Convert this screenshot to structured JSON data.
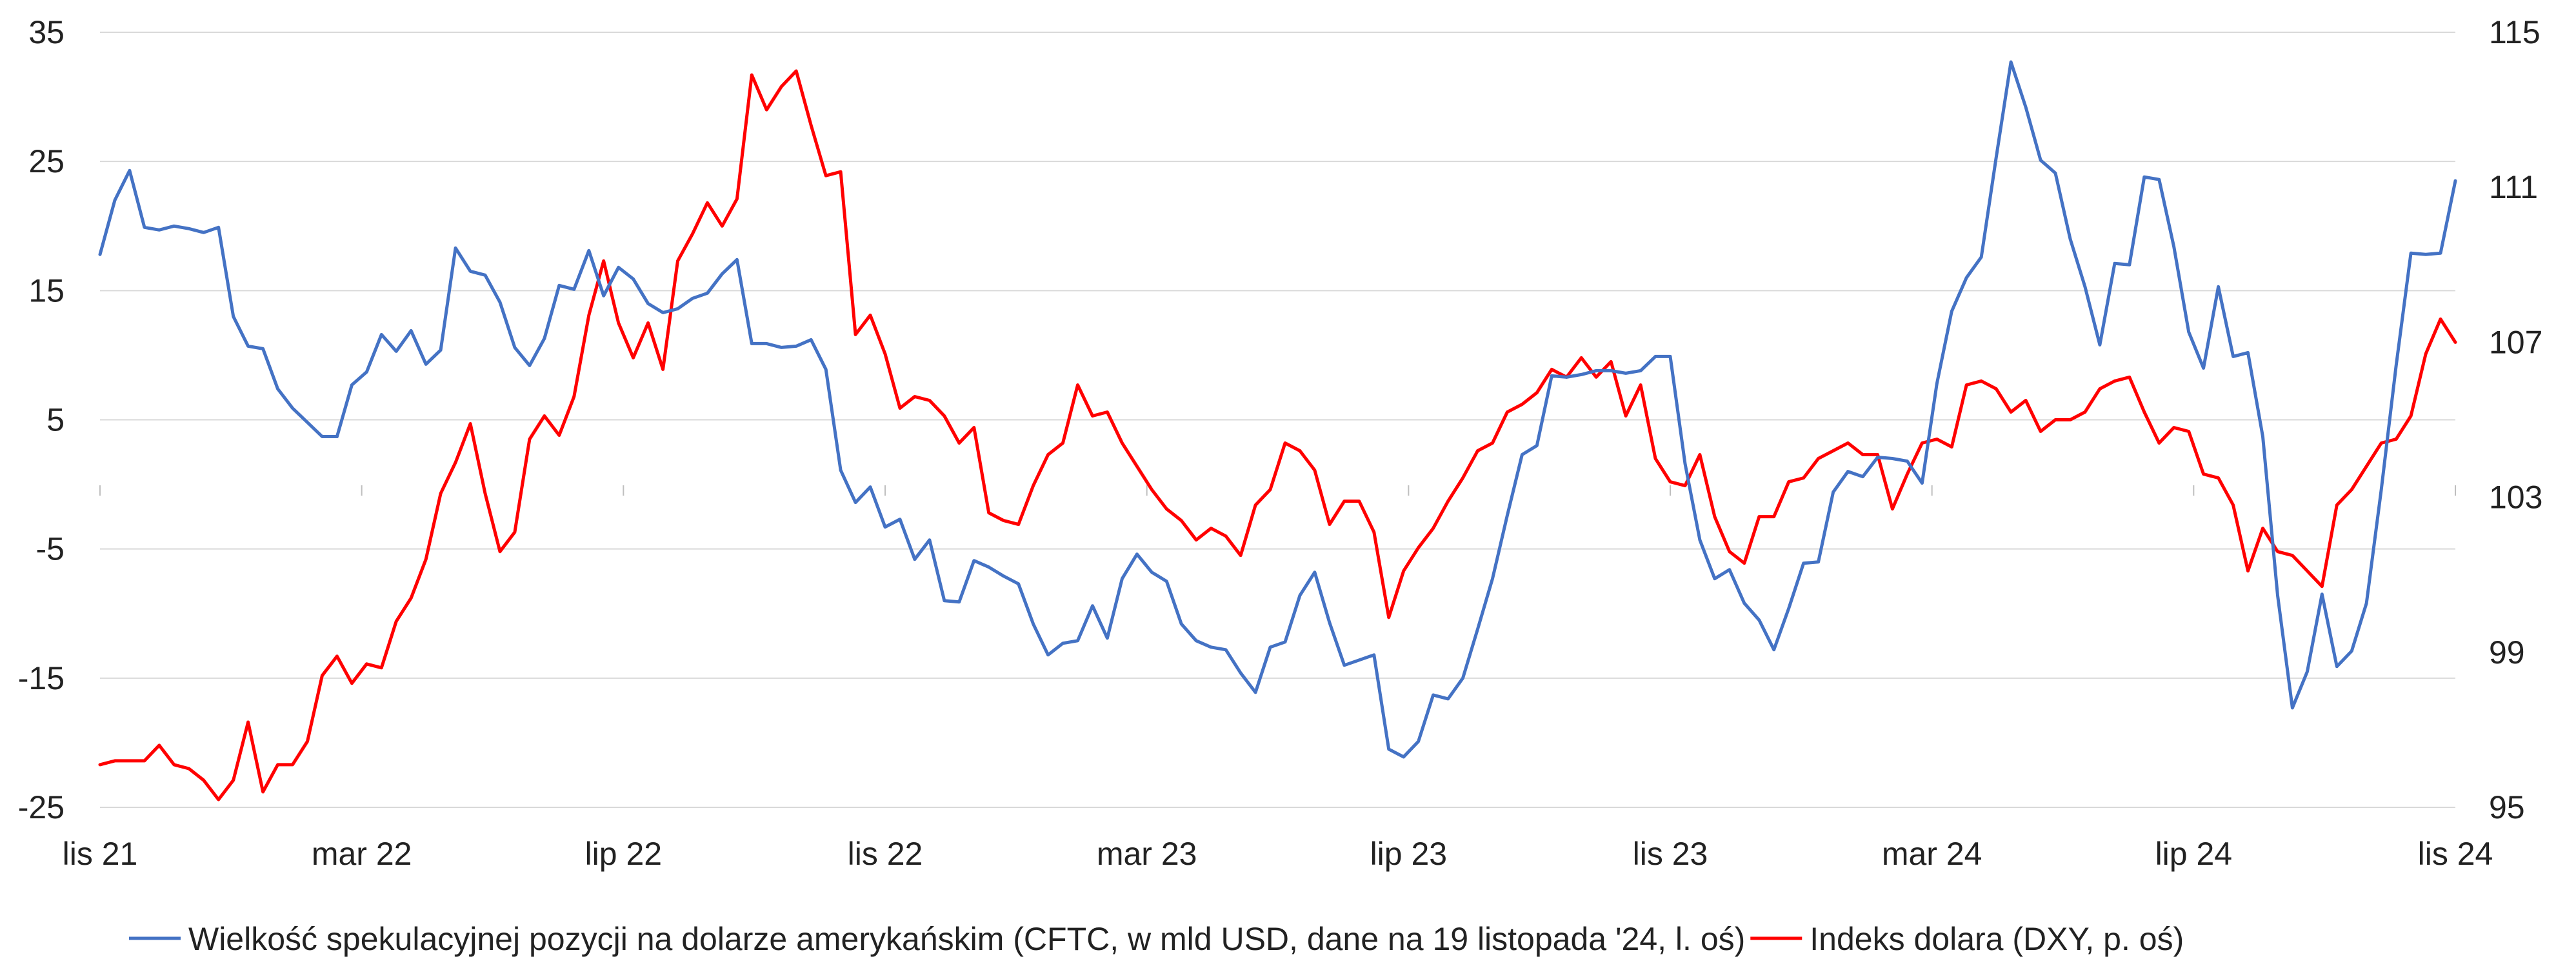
{
  "chart_data": {
    "type": "line",
    "title": "",
    "xlabel": "",
    "ylabel_left": "",
    "ylabel_right": "",
    "x_tick_labels": [
      "lis 21",
      "mar 22",
      "lip 22",
      "lis 22",
      "mar 23",
      "lip 23",
      "lis 23",
      "mar 24",
      "lip 24",
      "lis 24"
    ],
    "y_left": {
      "min": -25,
      "max": 35,
      "ticks": [
        -25,
        -15,
        -5,
        5,
        15,
        25,
        35
      ]
    },
    "y_right": {
      "min": 95,
      "max": 115,
      "ticks": [
        95,
        99,
        103,
        107,
        111,
        115
      ]
    },
    "grid": "horizontal",
    "legend_position": "bottom",
    "colors": {
      "cftc": "#4472c4",
      "dxy": "#ff0000",
      "grid": "#d9d9d9"
    },
    "series": [
      {
        "name": "Wielkość spekulacyjnej pozycji na dolarze amerykańskim (CFTC, w mld USD, dane na 19 listopada '24, l. oś)",
        "axis": "left",
        "values": [
          17.8,
          22,
          24.3,
          19.9,
          19.7,
          20,
          19.8,
          19.5,
          19.9,
          13,
          10.7,
          10.5,
          7.4,
          5.9,
          4.8,
          3.7,
          3.7,
          7.7,
          8.7,
          11.6,
          10.3,
          11.9,
          9.3,
          10.4,
          18.3,
          16.5,
          16.2,
          14.1,
          10.6,
          9.2,
          11.3,
          15.4,
          15.1,
          18.1,
          14.6,
          16.8,
          15.9,
          14,
          13.3,
          13.6,
          14.4,
          14.8,
          16.3,
          17.4,
          10.9,
          10.9,
          10.6,
          10.7,
          11.2,
          8.9,
          1.1,
          -1.4,
          -0.2,
          -3.3,
          -2.7,
          -5.8,
          -4.3,
          -9,
          -9.1,
          -5.9,
          -6.4,
          -7.1,
          -7.7,
          -10.8,
          -13.2,
          -12.3,
          -12.1,
          -9.4,
          -11.9,
          -7.3,
          -5.4,
          -6.8,
          -7.5,
          -10.8,
          -12.1,
          -12.6,
          -12.8,
          -14.6,
          -16.1,
          -12.6,
          -12.2,
          -8.6,
          -6.8,
          -10.7,
          -14,
          -13.6,
          -13.2,
          -20.5,
          -21.1,
          -19.9,
          -16.3,
          -16.6,
          -15,
          -11.2,
          -7.3,
          -2.4,
          2.3,
          3,
          8.4,
          8.3,
          8.5,
          8.8,
          8.8,
          8.6,
          8.8,
          9.9,
          9.9,
          1.6,
          -4.3,
          -7.3,
          -6.6,
          -9.2,
          -10.5,
          -12.8,
          -9.6,
          -6.1,
          -6,
          -0.6,
          1,
          0.6,
          2.1,
          2,
          1.8,
          0.1,
          7.8,
          13.4,
          16,
          17.6,
          25.3,
          32.7,
          29.2,
          25.1,
          24.1,
          19,
          15.3,
          10.8,
          17.1,
          17,
          23.8,
          23.6,
          18.4,
          11.8,
          9,
          15.3,
          9.9,
          10.2,
          3.7,
          -8.6,
          -17.3,
          -14.5,
          -8.5,
          -14.1,
          -12.9,
          -9.2,
          -0.4,
          9.2,
          17.9,
          17.8,
          17.9,
          23.5
        ]
      },
      {
        "name": "Indeks dolara (DXY, p. oś)",
        "axis": "right",
        "values": [
          96.1,
          96.2,
          96.2,
          96.2,
          96.6,
          96.1,
          96,
          95.7,
          95.2,
          95.7,
          97.2,
          95.4,
          96.1,
          96.1,
          96.7,
          98.4,
          98.9,
          98.2,
          98.7,
          98.6,
          99.8,
          100.4,
          101.4,
          103.1,
          103.9,
          104.9,
          103.1,
          101.6,
          102.1,
          104.5,
          105.1,
          104.6,
          105.6,
          107.7,
          109.1,
          107.5,
          106.6,
          107.5,
          106.3,
          109.1,
          109.8,
          110.6,
          110,
          110.7,
          113.9,
          113,
          113.6,
          114,
          112.6,
          111.3,
          111.4,
          107.2,
          107.7,
          106.7,
          105.3,
          105.6,
          105.5,
          105.1,
          104.4,
          104.8,
          102.6,
          102.4,
          102.3,
          103.3,
          104.1,
          104.4,
          105.9,
          105.1,
          105.2,
          104.4,
          103.8,
          103.2,
          102.7,
          102.4,
          101.9,
          102.2,
          102,
          101.5,
          102.8,
          103.2,
          104.4,
          104.2,
          103.7,
          102.3,
          102.9,
          102.9,
          102.1,
          99.9,
          101.1,
          101.7,
          102.2,
          102.9,
          103.5,
          104.2,
          104.4,
          105.2,
          105.4,
          105.7,
          106.3,
          106.1,
          106.6,
          106.1,
          106.5,
          105.1,
          105.9,
          104,
          103.4,
          103.3,
          104.1,
          102.5,
          101.6,
          101.3,
          102.5,
          102.5,
          103.4,
          103.5,
          104,
          104.2,
          104.4,
          104.1,
          104.1,
          102.7,
          103.6,
          104.4,
          104.5,
          104.3,
          105.9,
          106,
          105.8,
          105.2,
          105.5,
          104.7,
          105,
          105,
          105.2,
          105.8,
          106,
          106.1,
          105.2,
          104.4,
          104.8,
          104.7,
          103.6,
          103.5,
          102.8,
          101.1,
          102.2,
          101.6,
          101.5,
          101.1,
          100.7,
          102.8,
          103.2,
          103.8,
          104.4,
          104.5,
          105.1,
          106.7,
          107.6,
          107
        ]
      }
    ]
  }
}
